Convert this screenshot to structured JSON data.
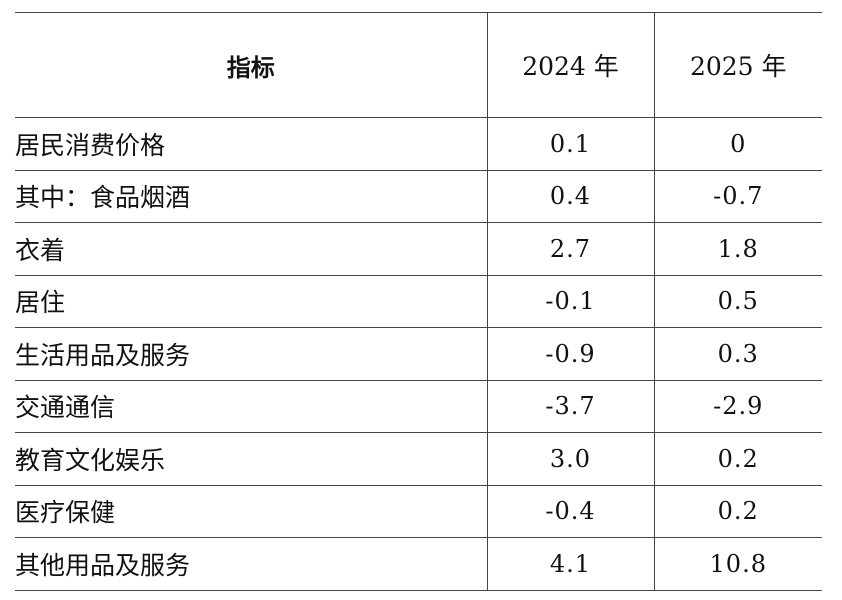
{
  "table": {
    "headers": [
      "指标",
      "2024 年",
      "2025 年"
    ],
    "rows": [
      {
        "label": "居民消费价格",
        "y2024": "0.1",
        "y2025": "0"
      },
      {
        "label": "其中：食品烟酒",
        "y2024": "0.4",
        "y2025": "-0.7"
      },
      {
        "label": "衣着",
        "y2024": "2.7",
        "y2025": "1.8"
      },
      {
        "label": "居住",
        "y2024": "-0.1",
        "y2025": "0.5"
      },
      {
        "label": "生活用品及服务",
        "y2024": "-0.9",
        "y2025": "0.3"
      },
      {
        "label": "交通通信",
        "y2024": "-3.7",
        "y2025": "-2.9"
      },
      {
        "label": "教育文化娱乐",
        "y2024": "3.0",
        "y2025": "0.2"
      },
      {
        "label": "医疗保健",
        "y2024": "-0.4",
        "y2025": "0.2"
      },
      {
        "label": "其他用品及服务",
        "y2024": "4.1",
        "y2025": "10.8"
      }
    ]
  }
}
